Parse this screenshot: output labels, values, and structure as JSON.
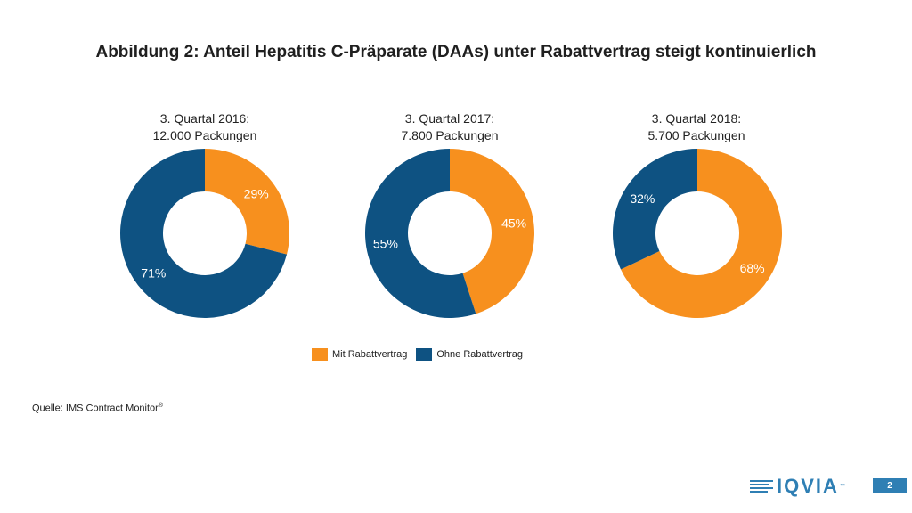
{
  "title": "Abbildung 2: Anteil Hepatitis C-Präparate (DAAs) unter Rabattvertrag steigt kontinuierlich",
  "colors": {
    "mit": "#f7901e",
    "ohne": "#0e5282",
    "label_on_orange": "#ffffff",
    "label_on_blue": "#ffffff"
  },
  "chart_data": [
    {
      "type": "pie",
      "title_line1": "3. Quartal 2016:",
      "title_line2": "12.000 Packungen",
      "slices": [
        {
          "name": "Mit Rabattvertrag",
          "value": 29,
          "label": "29%"
        },
        {
          "name": "Ohne Rabattvertrag",
          "value": 71,
          "label": "71%"
        }
      ]
    },
    {
      "type": "pie",
      "title_line1": "3. Quartal 2017:",
      "title_line2": "7.800 Packungen",
      "slices": [
        {
          "name": "Mit Rabattvertrag",
          "value": 45,
          "label": "45%"
        },
        {
          "name": "Ohne Rabattvertrag",
          "value": 55,
          "label": "55%"
        }
      ]
    },
    {
      "type": "pie",
      "title_line1": "3. Quartal 2018:",
      "title_line2": "5.700 Packungen",
      "slices": [
        {
          "name": "Mit Rabattvertrag",
          "value": 68,
          "label": "68%"
        },
        {
          "name": "Ohne Rabattvertrag",
          "value": 32,
          "label": "32%"
        }
      ]
    }
  ],
  "legend": [
    {
      "label": "Mit Rabattvertrag"
    },
    {
      "label": "Ohne Rabattvertrag"
    }
  ],
  "source": {
    "text": "Quelle: IMS Contract Monitor",
    "mark": "®"
  },
  "logo": {
    "text": "IQVIA",
    "tm": "™"
  },
  "page_number": "2"
}
